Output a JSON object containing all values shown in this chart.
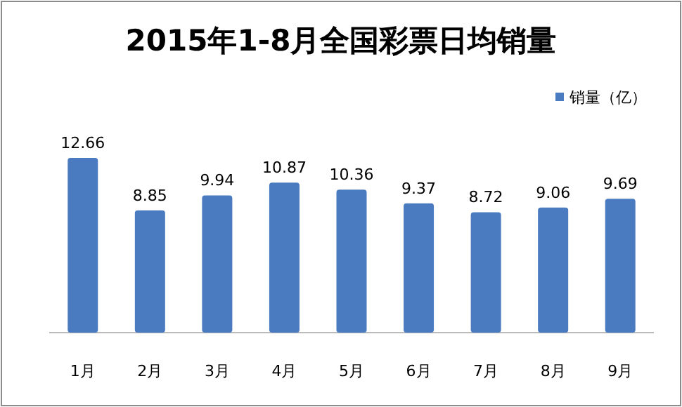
{
  "chart_data": {
    "type": "bar",
    "title": "2015年1-8月全国彩票日均销量",
    "categories": [
      "1月",
      "2月",
      "3月",
      "4月",
      "5月",
      "6月",
      "7月",
      "8月",
      "9月"
    ],
    "series": [
      {
        "name": "销量（亿）",
        "color": "#4a7bc0",
        "values": [
          12.66,
          8.85,
          9.94,
          10.87,
          10.36,
          9.37,
          8.72,
          9.06,
          9.69
        ]
      }
    ],
    "data_labels": true,
    "legend": "top right"
  }
}
